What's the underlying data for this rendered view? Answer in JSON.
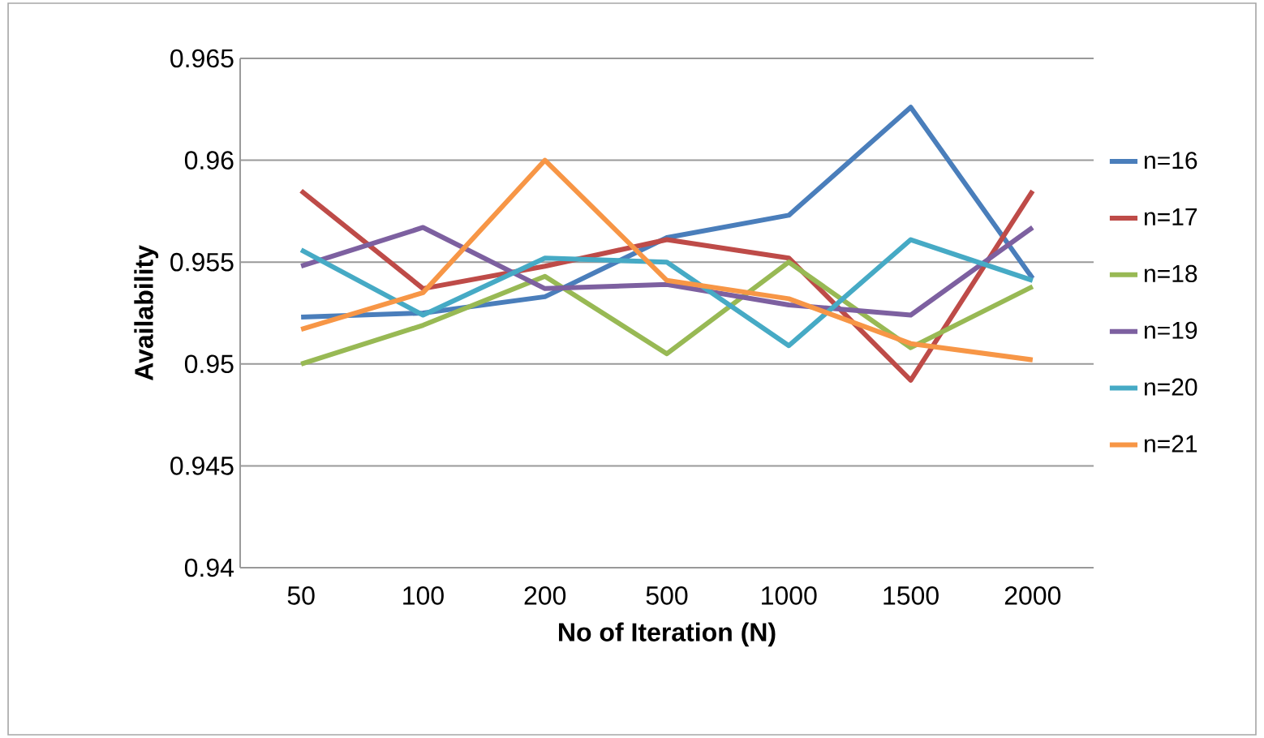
{
  "chart_data": {
    "type": "line",
    "xlabel": "No of Iteration (N)",
    "ylabel": "Availability",
    "categories": [
      "50",
      "100",
      "200",
      "500",
      "1000",
      "1500",
      "2000"
    ],
    "series": [
      {
        "name": "n=16",
        "color": "#4a7ebb",
        "values": [
          0.9523,
          0.9525,
          0.9533,
          0.9562,
          0.9573,
          0.9626,
          0.9542
        ]
      },
      {
        "name": "n=17",
        "color": "#be4b48",
        "values": [
          0.9585,
          0.9537,
          0.9548,
          0.9561,
          0.9552,
          0.9492,
          0.9585
        ]
      },
      {
        "name": "n=18",
        "color": "#98b954",
        "values": [
          0.95,
          0.9519,
          0.9543,
          0.9505,
          0.955,
          0.9508,
          0.9538
        ]
      },
      {
        "name": "n=19",
        "color": "#7d60a0",
        "values": [
          0.9548,
          0.9567,
          0.9537,
          0.9539,
          0.9529,
          0.9524,
          0.9567
        ]
      },
      {
        "name": "n=20",
        "color": "#46aac5",
        "values": [
          0.9556,
          0.9524,
          0.9552,
          0.955,
          0.9509,
          0.9561,
          0.9541
        ]
      },
      {
        "name": "n=21",
        "color": "#f79646",
        "values": [
          0.9517,
          0.9535,
          0.96,
          0.9541,
          0.9532,
          0.951,
          0.9502
        ]
      }
    ],
    "ylim": [
      0.94,
      0.965
    ],
    "yticks": [
      0.94,
      0.945,
      0.95,
      0.955,
      0.96,
      0.965
    ],
    "grid": "y",
    "legend": "right",
    "marker": "none",
    "line_style": "solid"
  }
}
